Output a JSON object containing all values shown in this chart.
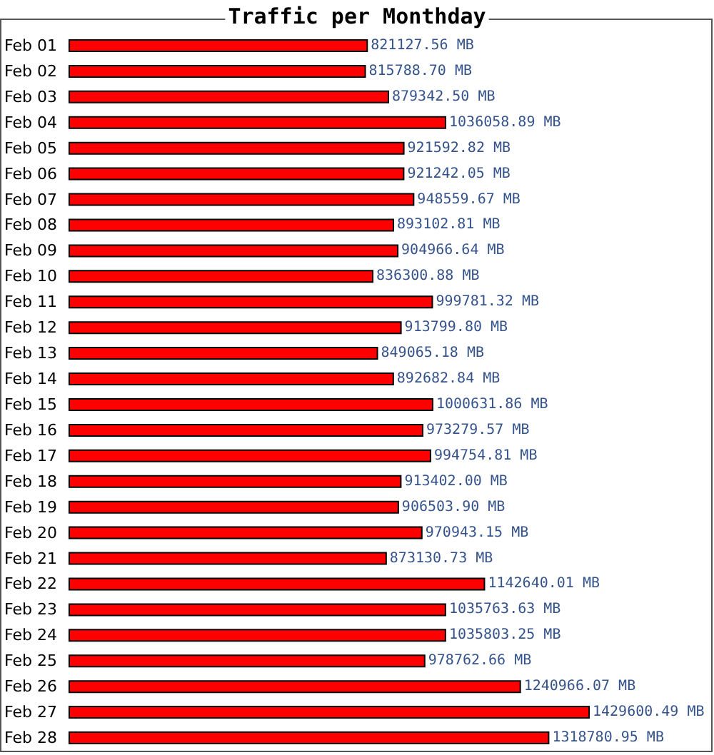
{
  "chart_data": {
    "type": "bar",
    "orientation": "horizontal",
    "title": "Traffic per Monthday",
    "categories": [
      "Feb 01",
      "Feb 02",
      "Feb 03",
      "Feb 04",
      "Feb 05",
      "Feb 06",
      "Feb 07",
      "Feb 08",
      "Feb 09",
      "Feb 10",
      "Feb 11",
      "Feb 12",
      "Feb 13",
      "Feb 14",
      "Feb 15",
      "Feb 16",
      "Feb 17",
      "Feb 18",
      "Feb 19",
      "Feb 20",
      "Feb 21",
      "Feb 22",
      "Feb 23",
      "Feb 24",
      "Feb 25",
      "Feb 26",
      "Feb 27",
      "Feb 28"
    ],
    "values": [
      821127.56,
      815788.7,
      879342.5,
      1036058.89,
      921592.82,
      921242.05,
      948559.67,
      893102.81,
      904966.64,
      836300.88,
      999781.32,
      913799.8,
      849065.18,
      892682.84,
      1000631.86,
      973279.57,
      994754.81,
      913402.0,
      906503.9,
      970943.15,
      873130.73,
      1142640.01,
      1035763.63,
      1035803.25,
      978762.66,
      1240966.07,
      1429600.49,
      1318780.95
    ],
    "value_labels": [
      "821127.56 MB",
      "815788.70 MB",
      "879342.50 MB",
      "1036058.89 MB",
      "921592.82 MB",
      "921242.05 MB",
      "948559.67 MB",
      "893102.81 MB",
      "904966.64 MB",
      "836300.88 MB",
      "999781.32 MB",
      "913799.80 MB",
      "849065.18 MB",
      "892682.84 MB",
      "1000631.86 MB",
      "973279.57 MB",
      "994754.81 MB",
      "913402.00 MB",
      "906503.90 MB",
      "970943.15 MB",
      "873130.73 MB",
      "1142640.01 MB",
      "1035763.63 MB",
      "1035803.25 MB",
      "978762.66 MB",
      "1240966.07 MB",
      "1429600.49 MB",
      "1318780.95 MB"
    ],
    "color": "#ff0000"
  }
}
